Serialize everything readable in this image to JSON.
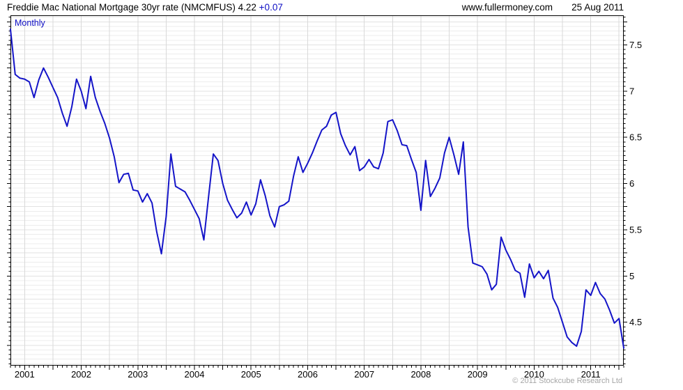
{
  "header": {
    "title": "Freddie Mac National Mortgage 30yr rate (NMCMFUS)",
    "last_value": "4.22",
    "change": "+0.07",
    "website": "www.fullermoney.com",
    "date": "25 Aug 2011"
  },
  "chart": {
    "frequency_label": "Monthly",
    "copyright": "© 2011 Stockcube Research Ltd"
  },
  "chart_data": {
    "type": "line",
    "title": "Freddie Mac National Mortgage 30yr rate (NMCMFUS)",
    "frequency": "monthly",
    "start_month": "2000-10",
    "end_month": "2011-08",
    "x_tick_labels": [
      "2001",
      "2002",
      "2003",
      "2004",
      "2005",
      "2006",
      "2007",
      "2008",
      "2009",
      "2010",
      "2011"
    ],
    "y_tick_labels": [
      "7.5",
      "7",
      "6.5",
      "6",
      "5.5",
      "5",
      "4.5"
    ],
    "y_tick_values": [
      7.5,
      7.0,
      6.5,
      6.0,
      5.5,
      5.0,
      4.5
    ],
    "ylim": [
      4.03,
      7.82
    ],
    "grid": {
      "horizontal_step": 0.05,
      "vertical": "every 6 months (Jan and Jul)"
    },
    "legend_position": "none",
    "values": [
      7.67,
      7.18,
      7.14,
      7.13,
      7.1,
      6.93,
      7.12,
      7.25,
      7.15,
      7.04,
      6.93,
      6.76,
      6.62,
      6.83,
      7.13,
      7.0,
      6.81,
      7.16,
      6.93,
      6.78,
      6.65,
      6.49,
      6.29,
      6.01,
      6.1,
      6.11,
      5.93,
      5.92,
      5.8,
      5.89,
      5.79,
      5.48,
      5.24,
      5.64,
      6.32,
      5.97,
      5.94,
      5.91,
      5.82,
      5.72,
      5.62,
      5.39,
      5.86,
      6.32,
      6.25,
      6.0,
      5.82,
      5.72,
      5.63,
      5.68,
      5.8,
      5.66,
      5.78,
      6.04,
      5.87,
      5.65,
      5.53,
      5.75,
      5.77,
      5.81,
      6.08,
      6.29,
      6.12,
      6.22,
      6.33,
      6.46,
      6.58,
      6.62,
      6.74,
      6.77,
      6.54,
      6.41,
      6.31,
      6.4,
      6.14,
      6.18,
      6.26,
      6.18,
      6.16,
      6.33,
      6.67,
      6.69,
      6.57,
      6.42,
      6.41,
      6.26,
      6.12,
      5.71,
      6.25,
      5.86,
      5.95,
      6.06,
      6.33,
      6.5,
      6.31,
      6.1,
      6.45,
      5.53,
      5.14,
      5.12,
      5.1,
      5.02,
      4.85,
      4.91,
      5.42,
      5.28,
      5.18,
      5.06,
      5.03,
      4.77,
      5.13,
      4.98,
      5.05,
      4.97,
      5.06,
      4.76,
      4.66,
      4.5,
      4.34,
      4.28,
      4.24,
      4.4,
      4.85,
      4.79,
      4.93,
      4.81,
      4.75,
      4.63,
      4.49,
      4.54,
      4.22
    ],
    "colors": {
      "line": "#1414c8",
      "accent_blue": "#0d0dc4",
      "grid_h": "#ececec",
      "grid_h_major": "#e2e2e2",
      "grid_v": "#d9d9d9",
      "border": "#000000",
      "copyright_gray": "#a6a6a6"
    }
  }
}
